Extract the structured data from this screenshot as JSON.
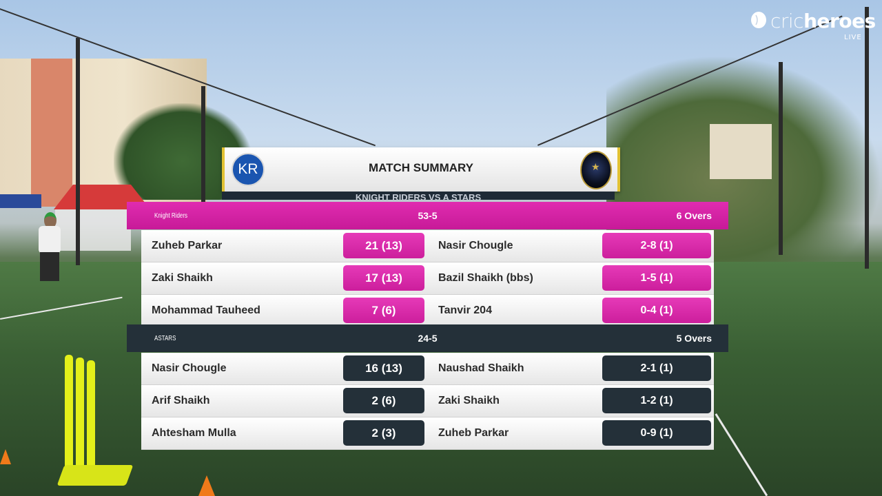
{
  "brand": {
    "name_part1": "cric",
    "name_part2": "heroes",
    "live_label": "LIVE"
  },
  "header": {
    "title": "MATCH SUMMARY",
    "team1_badge": "KR",
    "subtitle": "KNIGHT RIDERS VS A STARS"
  },
  "innings": [
    {
      "team_name": "Knight Riders",
      "score": "53-5",
      "overs": "6 Overs",
      "color": "#d0209f",
      "rows": [
        {
          "batter": "Zuheb Parkar",
          "bat_figures": "21 (13)",
          "bowler": "Nasir Chougle",
          "bowl_figures": "2-8 (1)"
        },
        {
          "batter": "Zaki Shaikh",
          "bat_figures": "17 (13)",
          "bowler": "Bazil Shaikh (bbs)",
          "bowl_figures": "1-5 (1)"
        },
        {
          "batter": "Mohammad Tauheed",
          "bat_figures": "7 (6)",
          "bowler": "Tanvir 204",
          "bowl_figures": "0-4 (1)"
        }
      ]
    },
    {
      "team_name": "ASTARS",
      "score": "24-5",
      "overs": "5 Overs",
      "color": "#243039",
      "rows": [
        {
          "batter": "Nasir Chougle",
          "bat_figures": "16 (13)",
          "bowler": "Naushad Shaikh",
          "bowl_figures": "2-1 (1)"
        },
        {
          "batter": "Arif Shaikh",
          "bat_figures": "2 (6)",
          "bowler": "Zaki Shaikh",
          "bowl_figures": "1-2 (1)"
        },
        {
          "batter": "Ahtesham Mulla",
          "bat_figures": "2 (3)",
          "bowler": "Zuheb Parkar",
          "bowl_figures": "0-9 (1)"
        }
      ]
    }
  ]
}
